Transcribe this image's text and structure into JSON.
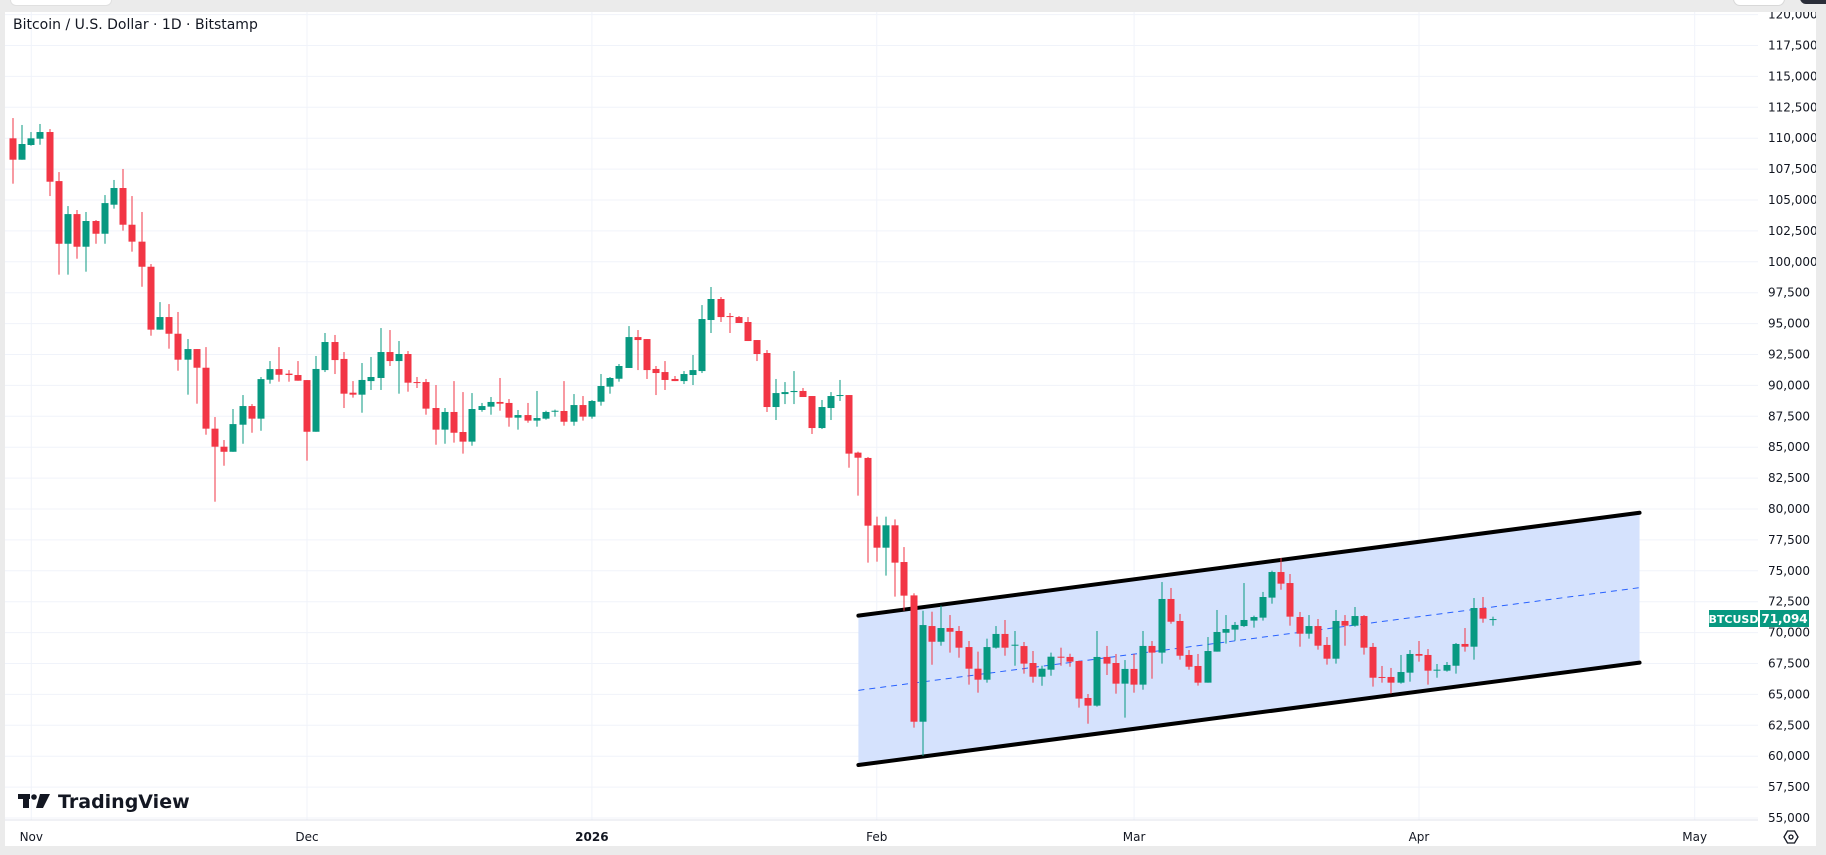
{
  "header": {
    "title": "Bitcoin / U.S. Dollar · 1D · Bitstamp"
  },
  "logo": {
    "text": "TradingView"
  },
  "price_label": {
    "symbol": "BTCUSD",
    "value": "71,094"
  },
  "colors": {
    "up": "#089981",
    "down": "#f23645",
    "channel_fill": "#d3e0fd",
    "channel_line": "#000000",
    "midline": "#2962ff",
    "grid": "#f0f3fa"
  },
  "icons": {
    "settings": "settings-hexagon-icon"
  },
  "chart_data": {
    "type": "candlestick",
    "title": "Bitcoin / U.S. Dollar · 1D · Bitstamp",
    "ylim": [
      55000,
      120000
    ],
    "y_ticks": [
      "55,000",
      "57,500",
      "60,000",
      "62,500",
      "65,000",
      "67,500",
      "70,000",
      "72,500",
      "75,000",
      "77,500",
      "80,000",
      "82,500",
      "85,000",
      "87,500",
      "90,000",
      "92,500",
      "95,000",
      "97,500",
      "100,000",
      "102,500",
      "105,000",
      "107,500",
      "110,000",
      "112,500",
      "115,000",
      "117,500",
      "120,000"
    ],
    "x_ticks": [
      {
        "date": "2025-11-01",
        "label": "Nov"
      },
      {
        "date": "2025-12-01",
        "label": "Dec"
      },
      {
        "date": "2026-01-01",
        "label": "2026",
        "bold": true
      },
      {
        "date": "2026-02-01",
        "label": "Feb"
      },
      {
        "date": "2026-03-01",
        "label": "Mar"
      },
      {
        "date": "2026-04-01",
        "label": "Apr"
      },
      {
        "date": "2026-05-01",
        "label": "May"
      }
    ],
    "grid": true,
    "last_price": 71094,
    "channel": {
      "upper": [
        [
          "2026-01-30",
          71370
        ],
        [
          "2026-04-25",
          79700
        ]
      ],
      "lower": [
        [
          "2026-01-30",
          59290
        ],
        [
          "2026-04-25",
          67570
        ]
      ],
      "midline": "dashed"
    },
    "candles_fields": [
      "date",
      "open",
      "high",
      "low",
      "close"
    ],
    "candles": [
      [
        "2025-10-30",
        109990,
        111630,
        106320,
        108260
      ],
      [
        "2025-10-31",
        108260,
        111070,
        108260,
        109530
      ],
      [
        "2025-11-01",
        109450,
        110500,
        109390,
        109990
      ],
      [
        "2025-11-02",
        109960,
        111150,
        109470,
        110500
      ],
      [
        "2025-11-03",
        110500,
        110740,
        105320,
        106480
      ],
      [
        "2025-11-04",
        106530,
        107260,
        98960,
        101460
      ],
      [
        "2025-11-05",
        101460,
        104510,
        98960,
        103860
      ],
      [
        "2025-11-06",
        103860,
        104190,
        100250,
        101220
      ],
      [
        "2025-11-07",
        101220,
        104030,
        99200,
        103300
      ],
      [
        "2025-11-08",
        103300,
        103380,
        101460,
        102270
      ],
      [
        "2025-11-09",
        102270,
        105400,
        101460,
        104750
      ],
      [
        "2025-11-10",
        104620,
        106620,
        104300,
        105970
      ],
      [
        "2025-11-11",
        105970,
        107510,
        102520,
        103000
      ],
      [
        "2025-11-12",
        103000,
        105320,
        100820,
        101630
      ],
      [
        "2025-11-13",
        101630,
        104030,
        97980,
        99600
      ],
      [
        "2025-11-14",
        99600,
        99820,
        94020,
        94510
      ],
      [
        "2025-11-15",
        94510,
        96740,
        94510,
        95530
      ],
      [
        "2025-11-16",
        95530,
        96580,
        92970,
        94180
      ],
      [
        "2025-11-17",
        94180,
        95940,
        91190,
        92080
      ],
      [
        "2025-11-18",
        92080,
        93750,
        89250,
        92940
      ],
      [
        "2025-11-19",
        92940,
        92940,
        88520,
        91430
      ],
      [
        "2025-11-20",
        91430,
        93100,
        86010,
        86500
      ],
      [
        "2025-11-21",
        86500,
        87440,
        80590,
        85040
      ],
      [
        "2025-11-22",
        85040,
        85580,
        83500,
        84630
      ],
      [
        "2025-11-23",
        84630,
        88090,
        84630,
        86870
      ],
      [
        "2025-11-24",
        86820,
        89220,
        85280,
        88330
      ],
      [
        "2025-11-25",
        88330,
        88490,
        86170,
        87310
      ],
      [
        "2025-11-26",
        87310,
        90680,
        86330,
        90510
      ],
      [
        "2025-11-27",
        90460,
        91970,
        90140,
        91320
      ],
      [
        "2025-11-28",
        91320,
        93100,
        90300,
        90860
      ],
      [
        "2025-11-29",
        90950,
        91240,
        90300,
        90840
      ],
      [
        "2025-11-30",
        90840,
        91970,
        90380,
        90380
      ],
      [
        "2025-12-01",
        90430,
        90430,
        83910,
        86250
      ],
      [
        "2025-12-02",
        86250,
        92380,
        86250,
        91330
      ],
      [
        "2025-12-03",
        91240,
        94240,
        91080,
        93510
      ],
      [
        "2025-12-04",
        93510,
        94080,
        90920,
        92050
      ],
      [
        "2025-12-05",
        92140,
        92700,
        88170,
        89330
      ],
      [
        "2025-12-06",
        89410,
        90350,
        89010,
        89250
      ],
      [
        "2025-12-07",
        89250,
        91810,
        87790,
        90440
      ],
      [
        "2025-12-08",
        90350,
        92300,
        89630,
        90680
      ],
      [
        "2025-12-09",
        90600,
        94640,
        89630,
        92700
      ],
      [
        "2025-12-10",
        92700,
        94480,
        91570,
        91970
      ],
      [
        "2025-12-11",
        91970,
        93590,
        89330,
        92540
      ],
      [
        "2025-12-12",
        92540,
        92780,
        89490,
        90220
      ],
      [
        "2025-12-13",
        90270,
        90680,
        89790,
        90220
      ],
      [
        "2025-12-14",
        90270,
        90520,
        87630,
        88120
      ],
      [
        "2025-12-15",
        88170,
        90030,
        85200,
        86420
      ],
      [
        "2025-12-16",
        86420,
        88170,
        85280,
        87850
      ],
      [
        "2025-12-17",
        87850,
        90350,
        85370,
        86170
      ],
      [
        "2025-12-18",
        86230,
        89460,
        84480,
        85450
      ],
      [
        "2025-12-19",
        85450,
        89380,
        85120,
        88090
      ],
      [
        "2025-12-20",
        88010,
        88580,
        87870,
        88330
      ],
      [
        "2025-12-21",
        88280,
        89060,
        87630,
        88660
      ],
      [
        "2025-12-22",
        88660,
        90600,
        87950,
        88520
      ],
      [
        "2025-12-23",
        88580,
        88900,
        86660,
        87390
      ],
      [
        "2025-12-24",
        87390,
        88010,
        86420,
        87600
      ],
      [
        "2025-12-25",
        87600,
        88580,
        86980,
        87150
      ],
      [
        "2025-12-26",
        87150,
        89550,
        86660,
        87360
      ],
      [
        "2025-12-27",
        87310,
        87950,
        87230,
        87850
      ],
      [
        "2025-12-28",
        87870,
        88040,
        87470,
        87950
      ],
      [
        "2025-12-29",
        87930,
        90350,
        86740,
        87060
      ],
      [
        "2025-12-30",
        87060,
        89300,
        86740,
        88410
      ],
      [
        "2025-12-31",
        88410,
        89140,
        87150,
        87470
      ],
      [
        "2026-01-01",
        87470,
        88820,
        87310,
        88740
      ],
      [
        "2026-01-02",
        88680,
        90920,
        88360,
        89950
      ],
      [
        "2026-01-03",
        89900,
        90680,
        89330,
        90600
      ],
      [
        "2026-01-04",
        90540,
        91730,
        90300,
        91570
      ],
      [
        "2026-01-05",
        91410,
        94800,
        91410,
        93910
      ],
      [
        "2026-01-06",
        93910,
        94480,
        91240,
        93670
      ],
      [
        "2026-01-07",
        93750,
        93750,
        90520,
        91240
      ],
      [
        "2026-01-08",
        91330,
        91570,
        89220,
        91000
      ],
      [
        "2026-01-09",
        91080,
        91970,
        89630,
        90440
      ],
      [
        "2026-01-10",
        90520,
        90760,
        90350,
        90350
      ],
      [
        "2026-01-11",
        90350,
        91160,
        90110,
        90920
      ],
      [
        "2026-01-12",
        90840,
        92460,
        90030,
        91240
      ],
      [
        "2026-01-13",
        91160,
        96500,
        91000,
        95370
      ],
      [
        "2026-01-14",
        95290,
        97960,
        94240,
        96990
      ],
      [
        "2026-01-15",
        96990,
        97150,
        95130,
        95530
      ],
      [
        "2026-01-16",
        95610,
        95860,
        94240,
        95530
      ],
      [
        "2026-01-17",
        95530,
        95610,
        95050,
        95050
      ],
      [
        "2026-01-18",
        95130,
        95530,
        93590,
        93590
      ],
      [
        "2026-01-19",
        93670,
        93670,
        91970,
        92540
      ],
      [
        "2026-01-20",
        92620,
        92860,
        87850,
        88250
      ],
      [
        "2026-01-21",
        88250,
        90520,
        87200,
        89380
      ],
      [
        "2026-01-22",
        89300,
        90270,
        88490,
        89460
      ],
      [
        "2026-01-23",
        89460,
        91160,
        88490,
        89550
      ],
      [
        "2026-01-24",
        89550,
        89790,
        89060,
        89060
      ],
      [
        "2026-01-25",
        89140,
        89140,
        86070,
        86550
      ],
      [
        "2026-01-26",
        86550,
        88820,
        86470,
        88250
      ],
      [
        "2026-01-27",
        88170,
        89460,
        87200,
        89140
      ],
      [
        "2026-01-28",
        89140,
        90440,
        88740,
        89220
      ],
      [
        "2026-01-29",
        89220,
        89220,
        83340,
        84480
      ],
      [
        "2026-01-30",
        84560,
        84640,
        81080,
        84150
      ],
      [
        "2026-01-31",
        84130,
        84210,
        75660,
        78650
      ],
      [
        "2026-02-01",
        78680,
        79380,
        75740,
        76870
      ],
      [
        "2026-02-02",
        76870,
        79380,
        74610,
        78680
      ],
      [
        "2026-02-03",
        78680,
        79160,
        72910,
        75660
      ],
      [
        "2026-02-04",
        75710,
        76920,
        71770,
        72990
      ],
      [
        "2026-02-05",
        73010,
        73180,
        62310,
        62790
      ],
      [
        "2026-02-06",
        62790,
        71770,
        60030,
        70610
      ],
      [
        "2026-02-07",
        70530,
        71690,
        67400,
        69260
      ],
      [
        "2026-02-08",
        69260,
        72180,
        68940,
        70370
      ],
      [
        "2026-02-09",
        70370,
        71420,
        68380,
        70070
      ],
      [
        "2026-02-10",
        70130,
        70530,
        67970,
        68780
      ],
      [
        "2026-02-11",
        68830,
        69320,
        65790,
        67080
      ],
      [
        "2026-02-12",
        67080,
        68460,
        65140,
        66190
      ],
      [
        "2026-02-13",
        66190,
        69510,
        65950,
        68830
      ],
      [
        "2026-02-14",
        68780,
        70530,
        68700,
        69890
      ],
      [
        "2026-02-15",
        69890,
        71020,
        68130,
        68780
      ],
      [
        "2026-02-16",
        68940,
        70130,
        67320,
        69020
      ],
      [
        "2026-02-17",
        68910,
        69240,
        66680,
        67490
      ],
      [
        "2026-02-18",
        67540,
        68510,
        65950,
        66430
      ],
      [
        "2026-02-19",
        66430,
        67320,
        65700,
        67080
      ],
      [
        "2026-02-20",
        67000,
        68380,
        66510,
        68050
      ],
      [
        "2026-02-21",
        68050,
        68780,
        67320,
        67970
      ],
      [
        "2026-02-22",
        68030,
        68290,
        67240,
        67650
      ],
      [
        "2026-02-23",
        67700,
        67730,
        63930,
        64660
      ],
      [
        "2026-02-24",
        64710,
        65030,
        62630,
        64090
      ],
      [
        "2026-02-25",
        64090,
        70130,
        64010,
        68030
      ],
      [
        "2026-02-26",
        68030,
        68920,
        66570,
        67490
      ],
      [
        "2026-02-27",
        67540,
        68270,
        65060,
        65870
      ],
      [
        "2026-02-28",
        65870,
        67780,
        63120,
        67060
      ],
      [
        "2026-03-01",
        67060,
        68270,
        65140,
        65790
      ],
      [
        "2026-03-02",
        65790,
        70130,
        65380,
        68920
      ],
      [
        "2026-03-03",
        68920,
        69320,
        66270,
        68380
      ],
      [
        "2026-03-04",
        68380,
        74090,
        67490,
        72720
      ],
      [
        "2026-03-05",
        72720,
        73610,
        70720,
        70880
      ],
      [
        "2026-03-06",
        70940,
        71510,
        67810,
        68130
      ],
      [
        "2026-03-07",
        68190,
        68590,
        67000,
        67240
      ],
      [
        "2026-03-08",
        67300,
        68270,
        65710,
        65950
      ],
      [
        "2026-03-09",
        65950,
        69640,
        65950,
        68510
      ],
      [
        "2026-03-10",
        68460,
        71830,
        68460,
        70050
      ],
      [
        "2026-03-11",
        69990,
        71420,
        69110,
        70290
      ],
      [
        "2026-03-12",
        70240,
        70860,
        69350,
        70620
      ],
      [
        "2026-03-13",
        70530,
        74010,
        70450,
        71020
      ],
      [
        "2026-03-14",
        70970,
        71370,
        70400,
        71260
      ],
      [
        "2026-03-15",
        71210,
        73290,
        70970,
        72880
      ],
      [
        "2026-03-16",
        72830,
        75010,
        72340,
        74900
      ],
      [
        "2026-03-17",
        74900,
        76040,
        73470,
        73960
      ],
      [
        "2026-03-18",
        74010,
        74740,
        70560,
        71290
      ],
      [
        "2026-03-19",
        71260,
        71670,
        68860,
        69910
      ],
      [
        "2026-03-20",
        69910,
        71420,
        69510,
        70530
      ],
      [
        "2026-03-21",
        70530,
        71100,
        68620,
        68940
      ],
      [
        "2026-03-22",
        69000,
        69640,
        67410,
        67890
      ],
      [
        "2026-03-23",
        67890,
        71830,
        67490,
        70940
      ],
      [
        "2026-03-24",
        70940,
        71420,
        68940,
        70560
      ],
      [
        "2026-03-25",
        70560,
        72070,
        70480,
        71340
      ],
      [
        "2026-03-26",
        71340,
        71420,
        68220,
        68780
      ],
      [
        "2026-03-27",
        68840,
        69160,
        65630,
        66350
      ],
      [
        "2026-03-28",
        66410,
        67300,
        65950,
        66350
      ],
      [
        "2026-03-29",
        66410,
        67140,
        65060,
        65950
      ],
      [
        "2026-03-30",
        65950,
        68190,
        65870,
        66810
      ],
      [
        "2026-03-31",
        66760,
        68590,
        66030,
        68270
      ],
      [
        "2026-04-01",
        68270,
        69320,
        67650,
        68130
      ],
      [
        "2026-04-02",
        68190,
        68670,
        65790,
        66920
      ],
      [
        "2026-04-03",
        66920,
        67460,
        66350,
        67000
      ],
      [
        "2026-04-04",
        66920,
        67620,
        66840,
        67380
      ],
      [
        "2026-04-05",
        67320,
        69160,
        66680,
        69080
      ],
      [
        "2026-04-06",
        69080,
        70370,
        68460,
        68860
      ],
      [
        "2026-04-07",
        68860,
        72800,
        67810,
        71990
      ],
      [
        "2026-04-08",
        71990,
        72880,
        70800,
        71130
      ],
      [
        "2026-04-09",
        71050,
        71290,
        70560,
        71094
      ]
    ]
  }
}
